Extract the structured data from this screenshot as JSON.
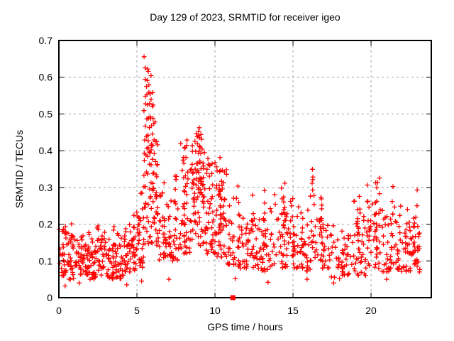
{
  "chart_data": {
    "type": "scatter",
    "title": "Day 129 of 2023, SRMTID for receiver igeo",
    "xlabel": "GPS time / hours",
    "ylabel": "SRMTID / TECUs",
    "xlim": [
      0,
      23.86
    ],
    "ylim": [
      0,
      0.7
    ],
    "xticks": {
      "values": [
        0,
        5,
        10,
        15,
        20
      ],
      "labels": [
        "0",
        "5",
        "10",
        "15",
        "20"
      ]
    },
    "yticks": {
      "values": [
        0,
        0.1,
        0.2,
        0.3,
        0.4,
        0.5,
        0.6,
        0.7
      ],
      "labels": [
        "0",
        "0.1",
        "0.2",
        "0.3",
        "0.4",
        "0.5",
        "0.6",
        "0.7"
      ]
    },
    "grid": true,
    "legend": "none",
    "marker": "plus",
    "marker_color": "#ff0000",
    "grid_color": "#a0a0a0",
    "frame_color": "#000000",
    "seed": 7,
    "baseline_segments": [
      [
        0.02,
        0.5,
        30,
        0.06,
        0.19,
        0.21,
        0.05
      ],
      [
        0.5,
        1.0,
        30,
        0.05,
        0.17,
        0.22,
        0.06
      ],
      [
        1.0,
        1.5,
        30,
        0.06,
        0.16,
        0.19,
        0.05
      ],
      [
        1.5,
        2.0,
        30,
        0.06,
        0.17,
        0.21,
        0.05
      ],
      [
        2.0,
        2.5,
        30,
        0.05,
        0.16,
        0.2,
        0.05
      ],
      [
        2.5,
        3.0,
        30,
        0.06,
        0.17,
        0.21,
        0.06
      ],
      [
        3.0,
        3.5,
        28,
        0.05,
        0.16,
        0.19,
        0.05
      ],
      [
        3.5,
        4.0,
        30,
        0.05,
        0.17,
        0.2,
        0.06
      ],
      [
        4.0,
        4.5,
        30,
        0.06,
        0.18,
        0.21,
        0.06
      ],
      [
        4.5,
        5.0,
        32,
        0.07,
        0.2,
        0.25,
        0.08
      ],
      [
        5.0,
        5.45,
        30,
        0.08,
        0.24,
        0.32,
        0.12
      ],
      [
        5.45,
        6.35,
        40,
        0.13,
        0.3,
        0.42,
        0.15
      ],
      [
        6.35,
        7.0,
        34,
        0.1,
        0.27,
        0.33,
        0.1
      ],
      [
        7.0,
        7.6,
        34,
        0.1,
        0.28,
        0.335,
        0.1
      ],
      [
        7.6,
        8.4,
        40,
        0.12,
        0.31,
        0.42,
        0.12
      ],
      [
        8.4,
        9.4,
        46,
        0.14,
        0.35,
        0.44,
        0.12
      ],
      [
        9.4,
        10.1,
        38,
        0.12,
        0.3,
        0.38,
        0.1
      ],
      [
        10.1,
        10.8,
        38,
        0.11,
        0.3,
        0.36,
        0.1
      ],
      [
        10.8,
        11.8,
        40,
        0.08,
        0.24,
        0.3,
        0.08
      ],
      [
        11.8,
        12.8,
        40,
        0.08,
        0.22,
        0.27,
        0.07
      ],
      [
        12.8,
        13.5,
        30,
        0.07,
        0.22,
        0.28,
        0.07
      ],
      [
        13.5,
        14.7,
        46,
        0.08,
        0.24,
        0.3,
        0.08
      ],
      [
        14.7,
        15.6,
        36,
        0.08,
        0.22,
        0.27,
        0.07
      ],
      [
        15.6,
        16.1,
        22,
        0.07,
        0.2,
        0.26,
        0.06
      ],
      [
        16.1,
        16.5,
        16,
        0.1,
        0.24,
        0.35,
        0.2
      ],
      [
        16.5,
        17.4,
        36,
        0.08,
        0.24,
        0.28,
        0.07
      ],
      [
        17.4,
        18.7,
        48,
        0.05,
        0.18,
        0.22,
        0.05
      ],
      [
        18.7,
        19.7,
        40,
        0.06,
        0.23,
        0.28,
        0.07
      ],
      [
        19.7,
        20.7,
        40,
        0.08,
        0.26,
        0.33,
        0.08
      ],
      [
        20.7,
        21.6,
        36,
        0.07,
        0.24,
        0.3,
        0.07
      ],
      [
        21.6,
        22.5,
        36,
        0.07,
        0.21,
        0.25,
        0.06
      ],
      [
        22.5,
        23.25,
        34,
        0.07,
        0.2,
        0.24,
        0.06
      ]
    ],
    "spike_columns": [
      [
        5.5,
        0.25,
        0.646,
        10
      ],
      [
        5.58,
        0.3,
        0.63,
        8
      ],
      [
        5.68,
        0.34,
        0.62,
        9
      ],
      [
        5.78,
        0.36,
        0.615,
        9
      ],
      [
        5.88,
        0.32,
        0.6,
        9
      ],
      [
        5.98,
        0.3,
        0.565,
        8
      ],
      [
        6.08,
        0.26,
        0.52,
        7
      ],
      [
        6.18,
        0.24,
        0.47,
        6
      ],
      [
        6.28,
        0.22,
        0.42,
        5
      ],
      [
        7.5,
        0.18,
        0.335,
        5
      ],
      [
        8.0,
        0.2,
        0.41,
        6
      ],
      [
        8.2,
        0.22,
        0.43,
        6
      ],
      [
        8.6,
        0.25,
        0.42,
        7
      ],
      [
        8.75,
        0.28,
        0.445,
        8
      ],
      [
        8.9,
        0.3,
        0.455,
        8
      ],
      [
        9.0,
        0.3,
        0.46,
        8
      ],
      [
        9.1,
        0.28,
        0.44,
        7
      ],
      [
        9.2,
        0.26,
        0.43,
        7
      ],
      [
        9.3,
        0.24,
        0.4,
        6
      ],
      [
        9.6,
        0.2,
        0.36,
        6
      ],
      [
        9.8,
        0.2,
        0.345,
        5
      ],
      [
        10.3,
        0.16,
        0.375,
        8
      ],
      [
        10.4,
        0.18,
        0.35,
        6
      ],
      [
        10.6,
        0.15,
        0.345,
        6
      ],
      [
        11.5,
        0.1,
        0.31,
        6
      ],
      [
        12.45,
        0.1,
        0.27,
        5
      ],
      [
        13.15,
        0.08,
        0.3,
        6
      ],
      [
        14.25,
        0.1,
        0.3,
        6
      ],
      [
        14.45,
        0.12,
        0.31,
        6
      ],
      [
        15.0,
        0.1,
        0.27,
        5
      ],
      [
        16.3,
        0.25,
        0.35,
        5
      ],
      [
        16.8,
        0.1,
        0.28,
        5
      ],
      [
        19.2,
        0.1,
        0.28,
        6
      ],
      [
        20.35,
        0.12,
        0.305,
        6
      ],
      [
        20.55,
        0.1,
        0.33,
        6
      ],
      [
        21.35,
        0.1,
        0.3,
        6
      ],
      [
        22.3,
        0.08,
        0.25,
        5
      ],
      [
        22.9,
        0.1,
        0.285,
        6
      ]
    ],
    "outlier_points": [
      [
        0.4,
        0.032
      ],
      [
        1.3,
        0.04
      ],
      [
        4.35,
        0.035
      ],
      [
        5.3,
        0.045
      ],
      [
        7.05,
        0.05
      ],
      [
        11.3,
        0.052
      ],
      [
        13.4,
        0.042
      ],
      [
        15.9,
        0.05
      ],
      [
        17.6,
        0.04
      ],
      [
        21.0,
        0.05
      ]
    ],
    "axis_square_marker": {
      "x": 11.15,
      "y": 0,
      "color": "#ff0000"
    }
  }
}
